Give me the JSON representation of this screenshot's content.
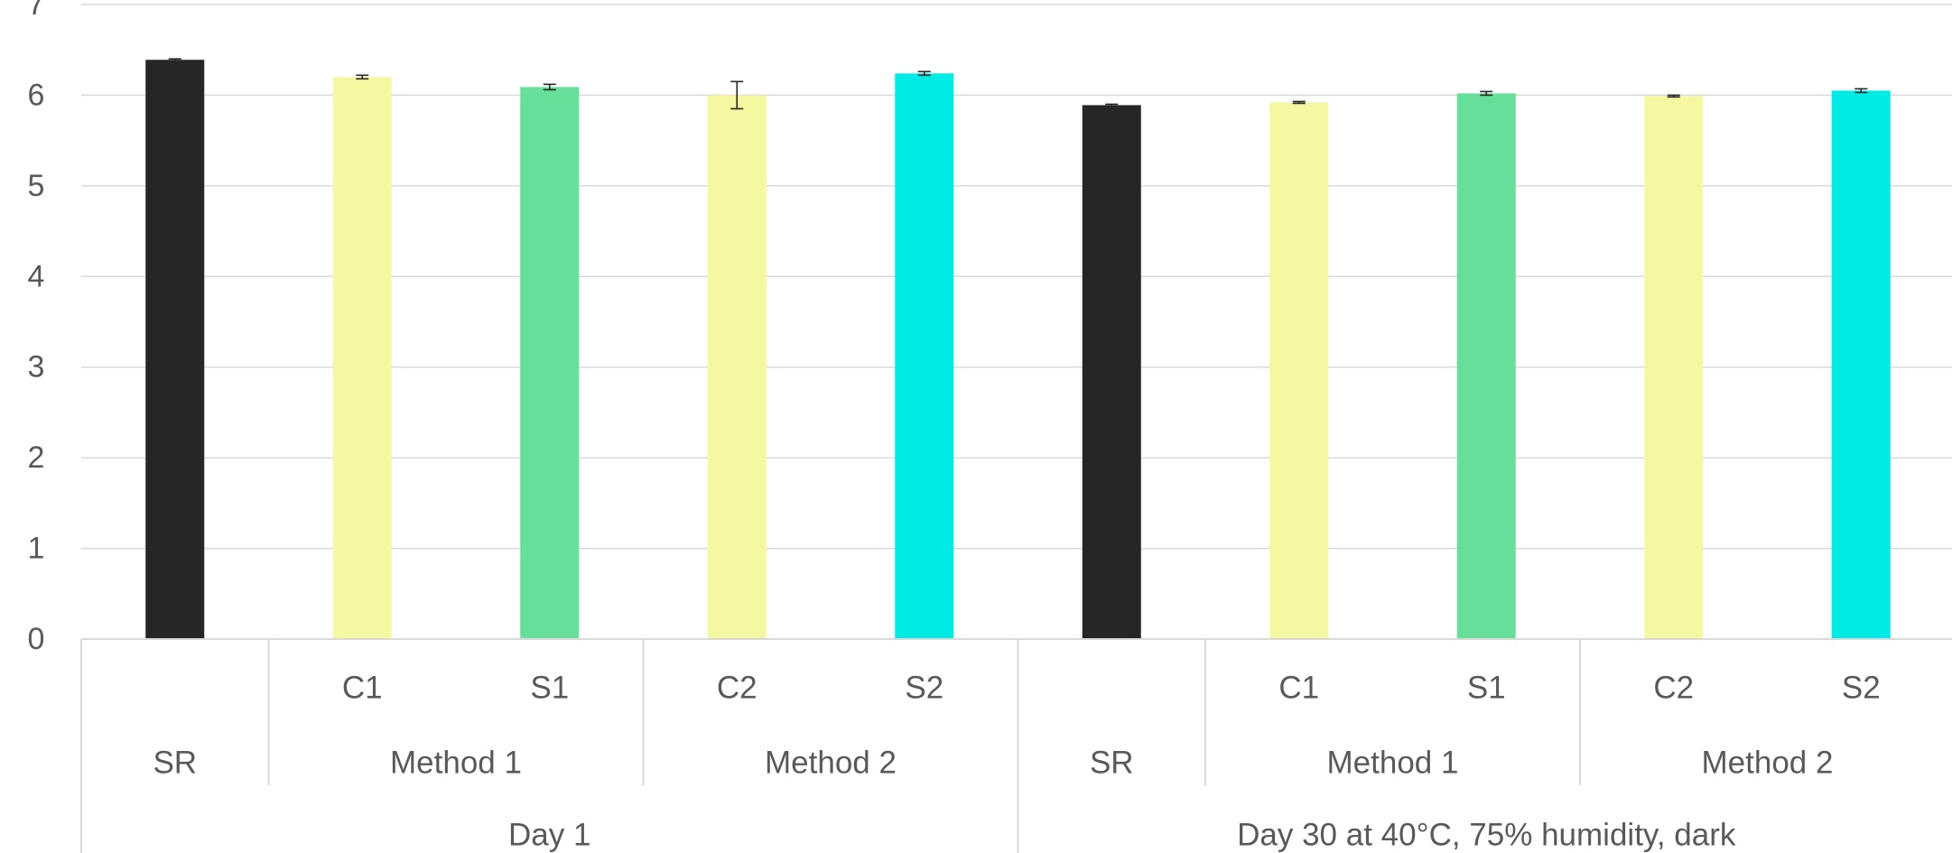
{
  "chart_data": {
    "type": "bar",
    "title": "",
    "xlabel": "",
    "ylabel": "",
    "ylim": [
      0,
      7
    ],
    "yticks": [
      0,
      1,
      2,
      3,
      4,
      5,
      6,
      7
    ],
    "grid": true,
    "legend": "none",
    "groups": [
      {
        "label": "Day 1",
        "subgroups": [
          {
            "label": "SR",
            "bars": [
              {
                "label": "",
                "value": 6.39,
                "error": 0.01,
                "color": "#262626"
              }
            ]
          },
          {
            "label": "Method 1",
            "bars": [
              {
                "label": "C1",
                "value": 6.2,
                "error": 0.02,
                "color": "#f5f8a1"
              },
              {
                "label": "S1",
                "value": 6.09,
                "error": 0.03,
                "color": "#66df9b"
              }
            ]
          },
          {
            "label": "Method 2",
            "bars": [
              {
                "label": "C2",
                "value": 6.0,
                "error": 0.15,
                "color": "#f5f8a1"
              },
              {
                "label": "S2",
                "value": 6.24,
                "error": 0.02,
                "color": "#00ebe6"
              }
            ]
          }
        ]
      },
      {
        "label": "Day 30 at 40°C, 75% humidity, dark",
        "subgroups": [
          {
            "label": "SR",
            "bars": [
              {
                "label": "",
                "value": 5.89,
                "error": 0.01,
                "color": "#262626"
              }
            ]
          },
          {
            "label": "Method 1",
            "bars": [
              {
                "label": "C1",
                "value": 5.92,
                "error": 0.01,
                "color": "#f5f8a1"
              },
              {
                "label": "S1",
                "value": 6.02,
                "error": 0.02,
                "color": "#66df9b"
              }
            ]
          },
          {
            "label": "Method 2",
            "bars": [
              {
                "label": "C2",
                "value": 5.99,
                "error": 0.01,
                "color": "#f5f8a1"
              },
              {
                "label": "S2",
                "value": 6.05,
                "error": 0.02,
                "color": "#00ebe6"
              }
            ]
          }
        ]
      }
    ]
  }
}
